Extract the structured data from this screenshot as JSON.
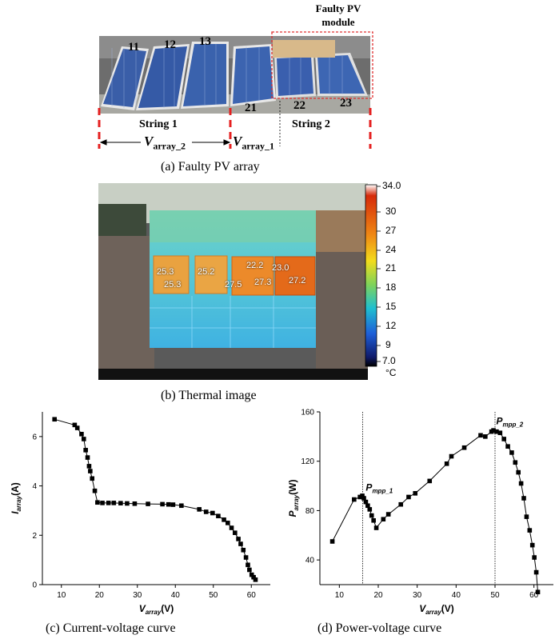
{
  "figure_a": {
    "panel_numbers": [
      "11",
      "12",
      "13",
      "21",
      "22",
      "23"
    ],
    "faulty_label": "Faulty PV module",
    "string1_label": "String 1",
    "string2_label": "String 2",
    "v_array2_main": "V",
    "v_array2_sub": "array_2",
    "v_array1_main": "V",
    "v_array1_sub": "array_1",
    "caption": "(a) Faulty PV array"
  },
  "figure_b": {
    "readings": [
      "25.3",
      "25.3",
      "25.2",
      "22.2",
      "23.0",
      "27.5",
      "27.3",
      "27.2"
    ],
    "colorbar_ticks": [
      "34.0",
      "30",
      "27",
      "24",
      "21",
      "18",
      "15",
      "12",
      "9",
      "7.0"
    ],
    "unit": "°C",
    "caption": "(b) Thermal image"
  },
  "captions": {
    "c": "(c) Current-voltage curve",
    "d": "(d) Power-voltage curve"
  },
  "annotations": {
    "pmpp1_main": "P",
    "pmpp1_sub": "mpp_1",
    "pmpp2_main": "P",
    "pmpp2_sub": "mpp_2"
  },
  "chart_data": [
    {
      "type": "line",
      "xlabel_main": "V",
      "xlabel_sub": "array",
      "xlabel_unit": "(V)",
      "ylabel_main": "I",
      "ylabel_sub": "array",
      "ylabel_unit": "(A)",
      "xlim": [
        5,
        65
      ],
      "ylim": [
        0,
        7
      ],
      "xticks": [
        10,
        20,
        30,
        40,
        50,
        60
      ],
      "yticks": [
        0,
        2,
        4,
        6
      ],
      "x": [
        8.2,
        13.5,
        14.2,
        15.3,
        15.9,
        16.4,
        16.9,
        17.3,
        17.6,
        18.1,
        18.8,
        19.5,
        20.8,
        22.4,
        23.8,
        25.6,
        27.3,
        29.3,
        32.8,
        36.6,
        38.2,
        39.4,
        41.6,
        46.3,
        48.1,
        49.8,
        51.3,
        52.8,
        53.8,
        54.8,
        55.7,
        56.6,
        57.2,
        57.9,
        58.6,
        59.1,
        59.5,
        60.1,
        60.6,
        61.1
      ],
      "y": [
        6.7,
        6.47,
        6.35,
        6.1,
        5.9,
        5.45,
        5.15,
        4.8,
        4.6,
        4.3,
        3.8,
        3.33,
        3.31,
        3.31,
        3.31,
        3.3,
        3.29,
        3.28,
        3.27,
        3.26,
        3.25,
        3.24,
        3.2,
        3.05,
        2.95,
        2.9,
        2.78,
        2.63,
        2.5,
        2.3,
        2.1,
        1.85,
        1.65,
        1.4,
        1.1,
        0.8,
        0.6,
        0.4,
        0.3,
        0.2
      ]
    },
    {
      "type": "line",
      "xlabel_main": "V",
      "xlabel_sub": "array",
      "xlabel_unit": "(V)",
      "ylabel_main": "P",
      "ylabel_sub": "array",
      "ylabel_unit": "(W)",
      "xlim": [
        5,
        65
      ],
      "ylim": [
        20,
        160
      ],
      "xticks": [
        10,
        20,
        30,
        40,
        50,
        60
      ],
      "yticks": [
        40,
        80,
        120,
        160
      ],
      "vlines": [
        16,
        50
      ],
      "x": [
        8.2,
        13.8,
        15.3,
        15.9,
        16.3,
        16.8,
        17.3,
        17.8,
        18.3,
        18.8,
        19.5,
        21.3,
        22.6,
        25.8,
        27.8,
        29.5,
        33.2,
        37.6,
        38.8,
        42.1,
        46.3,
        47.5,
        49.1,
        49.6,
        50.4,
        51.3,
        52.3,
        53.3,
        54.3,
        55.2,
        56.0,
        56.7,
        57.4,
        58.1,
        58.9,
        59.6,
        60.1,
        60.6,
        61.0
      ],
      "y": [
        55,
        89,
        91,
        92,
        90,
        87,
        84,
        81,
        76,
        72,
        66,
        73,
        77,
        85,
        91,
        94,
        104,
        118,
        124,
        131,
        141,
        140,
        144,
        145,
        144,
        143,
        138,
        132,
        127,
        119,
        111,
        102,
        90,
        75,
        64,
        52,
        42,
        30,
        14
      ]
    }
  ]
}
